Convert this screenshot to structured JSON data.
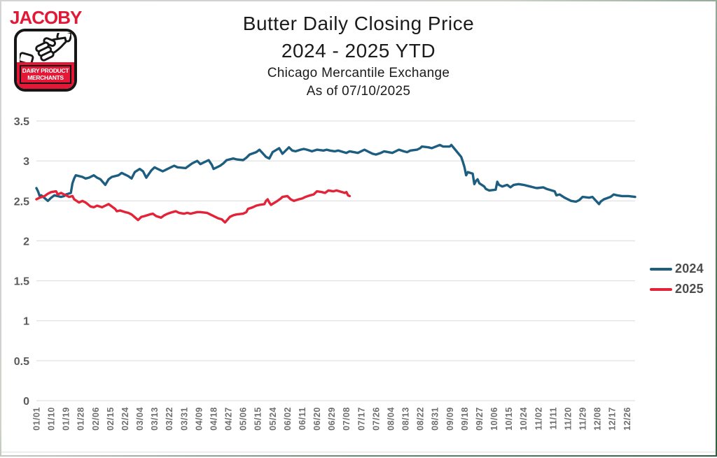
{
  "logo": {
    "brand": "JACOBY",
    "badge_line1": "DAIRY PRODUCT",
    "badge_line2": "MERCHANTS"
  },
  "header": {
    "title_line1": "Butter Daily Closing Price",
    "title_line2": "2024 - 2025 YTD",
    "subtitle_line1": "Chicago Mercantile Exchange",
    "subtitle_line2": "As of 07/10/2025"
  },
  "colors": {
    "series_2024": "#1d5e80",
    "series_2025": "#e32337",
    "gridline": "#d9d9d9",
    "axis_label": "#5a5a5a",
    "x_label": "#6e6e6e",
    "title_text": "#1b1b1b",
    "legend_text": "#4d4d4d",
    "logo_red": "#e31837",
    "frame_green": "#2f5f3e",
    "frame_gray": "#d4d4d4"
  },
  "chart_data": {
    "type": "line",
    "title": "Butter Daily Closing Price 2024 - 2025 YTD",
    "subtitle": "Chicago Mercantile Exchange — As of 07/10/2025",
    "xlabel": "",
    "ylabel": "",
    "ylim": [
      0,
      3.5
    ],
    "y_ticks": [
      3.5,
      3,
      2.5,
      2,
      1.5,
      1,
      0.5,
      0
    ],
    "grid": "horizontal",
    "legend_position": "right",
    "x_tick_labels": [
      "01/01",
      "01/10",
      "01/19",
      "01/28",
      "02/06",
      "02/15",
      "02/24",
      "03/04",
      "03/13",
      "03/22",
      "03/31",
      "04/09",
      "04/18",
      "04/27",
      "05/06",
      "05/15",
      "05/24",
      "06/02",
      "06/11",
      "06/20",
      "06/29",
      "07/08",
      "07/17",
      "07/26",
      "08/04",
      "08/13",
      "08/22",
      "08/31",
      "09/09",
      "09/18",
      "09/27",
      "10/06",
      "10/15",
      "10/24",
      "11/02",
      "11/11",
      "11/20",
      "11/29",
      "12/08",
      "12/17",
      "12/26"
    ],
    "series": [
      {
        "name": "2024",
        "color": "#1d5e80",
        "points": [
          [
            "01/01",
            2.66
          ],
          [
            "01/02",
            2.62
          ],
          [
            "01/03",
            2.56
          ],
          [
            "01/04",
            2.57
          ],
          [
            "01/08",
            2.5
          ],
          [
            "01/10",
            2.54
          ],
          [
            "01/12",
            2.57
          ],
          [
            "01/16",
            2.55
          ],
          [
            "01/18",
            2.56
          ],
          [
            "01/19",
            2.58
          ],
          [
            "01/22",
            2.6
          ],
          [
            "01/23",
            2.72
          ],
          [
            "01/24",
            2.78
          ],
          [
            "01/25",
            2.82
          ],
          [
            "01/29",
            2.8
          ],
          [
            "01/31",
            2.78
          ],
          [
            "02/02",
            2.79
          ],
          [
            "02/05",
            2.82
          ],
          [
            "02/07",
            2.79
          ],
          [
            "02/09",
            2.77
          ],
          [
            "02/12",
            2.7
          ],
          [
            "02/14",
            2.77
          ],
          [
            "02/16",
            2.8
          ],
          [
            "02/20",
            2.82
          ],
          [
            "02/22",
            2.85
          ],
          [
            "02/26",
            2.81
          ],
          [
            "02/28",
            2.78
          ],
          [
            "03/01",
            2.86
          ],
          [
            "03/04",
            2.9
          ],
          [
            "03/06",
            2.87
          ],
          [
            "03/08",
            2.79
          ],
          [
            "03/11",
            2.88
          ],
          [
            "03/13",
            2.92
          ],
          [
            "03/15",
            2.9
          ],
          [
            "03/18",
            2.87
          ],
          [
            "03/20",
            2.89
          ],
          [
            "03/22",
            2.91
          ],
          [
            "03/25",
            2.94
          ],
          [
            "03/27",
            2.92
          ],
          [
            "04/01",
            2.91
          ],
          [
            "04/03",
            2.94
          ],
          [
            "04/05",
            2.97
          ],
          [
            "04/08",
            3.0
          ],
          [
            "04/10",
            2.96
          ],
          [
            "04/12",
            2.98
          ],
          [
            "04/15",
            3.01
          ],
          [
            "04/17",
            2.95
          ],
          [
            "04/18",
            2.9
          ],
          [
            "04/22",
            2.94
          ],
          [
            "04/24",
            2.97
          ],
          [
            "04/26",
            3.01
          ],
          [
            "04/30",
            3.03
          ],
          [
            "05/02",
            3.02
          ],
          [
            "05/06",
            3.01
          ],
          [
            "05/08",
            3.04
          ],
          [
            "05/10",
            3.08
          ],
          [
            "05/14",
            3.11
          ],
          [
            "05/16",
            3.14
          ],
          [
            "05/20",
            3.05
          ],
          [
            "05/22",
            3.03
          ],
          [
            "05/24",
            3.11
          ],
          [
            "05/28",
            3.16
          ],
          [
            "05/30",
            3.09
          ],
          [
            "06/03",
            3.17
          ],
          [
            "06/05",
            3.13
          ],
          [
            "06/07",
            3.12
          ],
          [
            "06/10",
            3.14
          ],
          [
            "06/12",
            3.15
          ],
          [
            "06/14",
            3.14
          ],
          [
            "06/17",
            3.12
          ],
          [
            "06/20",
            3.14
          ],
          [
            "06/24",
            3.13
          ],
          [
            "06/26",
            3.14
          ],
          [
            "06/28",
            3.13
          ],
          [
            "07/01",
            3.12
          ],
          [
            "07/03",
            3.13
          ],
          [
            "07/08",
            3.1
          ],
          [
            "07/10",
            3.12
          ],
          [
            "07/15",
            3.1
          ],
          [
            "07/17",
            3.12
          ],
          [
            "07/19",
            3.14
          ],
          [
            "07/22",
            3.11
          ],
          [
            "07/24",
            3.09
          ],
          [
            "07/26",
            3.08
          ],
          [
            "07/29",
            3.1
          ],
          [
            "07/31",
            3.12
          ],
          [
            "08/05",
            3.1
          ],
          [
            "08/07",
            3.12
          ],
          [
            "08/09",
            3.14
          ],
          [
            "08/12",
            3.12
          ],
          [
            "08/14",
            3.11
          ],
          [
            "08/16",
            3.13
          ],
          [
            "08/20",
            3.14
          ],
          [
            "08/22",
            3.16
          ],
          [
            "08/23",
            3.18
          ],
          [
            "08/27",
            3.17
          ],
          [
            "08/29",
            3.16
          ],
          [
            "09/03",
            3.2
          ],
          [
            "09/05",
            3.18
          ],
          [
            "09/09",
            3.18
          ],
          [
            "09/10",
            3.2
          ],
          [
            "09/12",
            3.15
          ],
          [
            "09/16",
            3.05
          ],
          [
            "09/17",
            2.99
          ],
          [
            "09/18",
            2.92
          ],
          [
            "09/19",
            2.82
          ],
          [
            "09/20",
            2.86
          ],
          [
            "09/23",
            2.84
          ],
          [
            "09/24",
            2.71
          ],
          [
            "09/25",
            2.75
          ],
          [
            "09/26",
            2.77
          ],
          [
            "09/27",
            2.72
          ],
          [
            "09/30",
            2.68
          ],
          [
            "10/01",
            2.65
          ],
          [
            "10/03",
            2.63
          ],
          [
            "10/07",
            2.64
          ],
          [
            "10/08",
            2.74
          ],
          [
            "10/09",
            2.7
          ],
          [
            "10/11",
            2.68
          ],
          [
            "10/14",
            2.7
          ],
          [
            "10/16",
            2.67
          ],
          [
            "10/18",
            2.7
          ],
          [
            "10/21",
            2.71
          ],
          [
            "10/24",
            2.7
          ],
          [
            "10/28",
            2.68
          ],
          [
            "10/30",
            2.67
          ],
          [
            "11/01",
            2.66
          ],
          [
            "11/05",
            2.67
          ],
          [
            "11/07",
            2.65
          ],
          [
            "11/12",
            2.62
          ],
          [
            "11/13",
            2.57
          ],
          [
            "11/15",
            2.58
          ],
          [
            "11/18",
            2.54
          ],
          [
            "11/20",
            2.52
          ],
          [
            "11/22",
            2.5
          ],
          [
            "11/25",
            2.49
          ],
          [
            "11/27",
            2.51
          ],
          [
            "11/29",
            2.55
          ],
          [
            "12/03",
            2.54
          ],
          [
            "12/05",
            2.55
          ],
          [
            "12/09",
            2.46
          ],
          [
            "12/10",
            2.49
          ],
          [
            "12/12",
            2.52
          ],
          [
            "12/16",
            2.55
          ],
          [
            "12/18",
            2.58
          ],
          [
            "12/20",
            2.57
          ],
          [
            "12/23",
            2.56
          ],
          [
            "12/27",
            2.56
          ],
          [
            "12/31",
            2.55
          ]
        ]
      },
      {
        "name": "2025",
        "color": "#e32337",
        "points": [
          [
            "01/01",
            2.52
          ],
          [
            "01/03",
            2.54
          ],
          [
            "01/06",
            2.56
          ],
          [
            "01/08",
            2.59
          ],
          [
            "01/10",
            2.61
          ],
          [
            "01/13",
            2.62
          ],
          [
            "01/14",
            2.58
          ],
          [
            "01/16",
            2.6
          ],
          [
            "01/21",
            2.55
          ],
          [
            "01/23",
            2.56
          ],
          [
            "01/24",
            2.52
          ],
          [
            "01/27",
            2.48
          ],
          [
            "01/29",
            2.5
          ],
          [
            "01/31",
            2.48
          ],
          [
            "02/03",
            2.43
          ],
          [
            "02/05",
            2.42
          ],
          [
            "02/07",
            2.44
          ],
          [
            "02/10",
            2.42
          ],
          [
            "02/12",
            2.44
          ],
          [
            "02/14",
            2.46
          ],
          [
            "02/18",
            2.4
          ],
          [
            "02/19",
            2.37
          ],
          [
            "02/21",
            2.38
          ],
          [
            "02/24",
            2.36
          ],
          [
            "02/26",
            2.35
          ],
          [
            "02/28",
            2.33
          ],
          [
            "03/03",
            2.26
          ],
          [
            "03/05",
            2.3
          ],
          [
            "03/07",
            2.31
          ],
          [
            "03/10",
            2.33
          ],
          [
            "03/12",
            2.34
          ],
          [
            "03/14",
            2.31
          ],
          [
            "03/17",
            2.29
          ],
          [
            "03/19",
            2.32
          ],
          [
            "03/21",
            2.34
          ],
          [
            "03/24",
            2.36
          ],
          [
            "03/26",
            2.37
          ],
          [
            "03/28",
            2.35
          ],
          [
            "03/31",
            2.34
          ],
          [
            "04/02",
            2.35
          ],
          [
            "04/04",
            2.34
          ],
          [
            "04/08",
            2.36
          ],
          [
            "04/10",
            2.36
          ],
          [
            "04/14",
            2.35
          ],
          [
            "04/16",
            2.33
          ],
          [
            "04/21",
            2.28
          ],
          [
            "04/23",
            2.27
          ],
          [
            "04/25",
            2.23
          ],
          [
            "04/28",
            2.3
          ],
          [
            "04/30",
            2.32
          ],
          [
            "05/02",
            2.33
          ],
          [
            "05/06",
            2.34
          ],
          [
            "05/08",
            2.36
          ],
          [
            "05/09",
            2.4
          ],
          [
            "05/12",
            2.42
          ],
          [
            "05/14",
            2.44
          ],
          [
            "05/16",
            2.45
          ],
          [
            "05/19",
            2.46
          ],
          [
            "05/20",
            2.5
          ],
          [
            "05/21",
            2.52
          ],
          [
            "05/22",
            2.48
          ],
          [
            "05/23",
            2.45
          ],
          [
            "05/27",
            2.5
          ],
          [
            "05/29",
            2.53
          ],
          [
            "05/30",
            2.55
          ],
          [
            "06/02",
            2.56
          ],
          [
            "06/04",
            2.52
          ],
          [
            "06/06",
            2.5
          ],
          [
            "06/09",
            2.52
          ],
          [
            "06/11",
            2.53
          ],
          [
            "06/13",
            2.55
          ],
          [
            "06/16",
            2.57
          ],
          [
            "06/18",
            2.58
          ],
          [
            "06/20",
            2.62
          ],
          [
            "06/23",
            2.61
          ],
          [
            "06/25",
            2.6
          ],
          [
            "06/27",
            2.63
          ],
          [
            "06/30",
            2.62
          ],
          [
            "07/02",
            2.63
          ],
          [
            "07/07",
            2.6
          ],
          [
            "07/08",
            2.61
          ],
          [
            "07/09",
            2.57
          ],
          [
            "07/10",
            2.56
          ]
        ]
      }
    ]
  }
}
